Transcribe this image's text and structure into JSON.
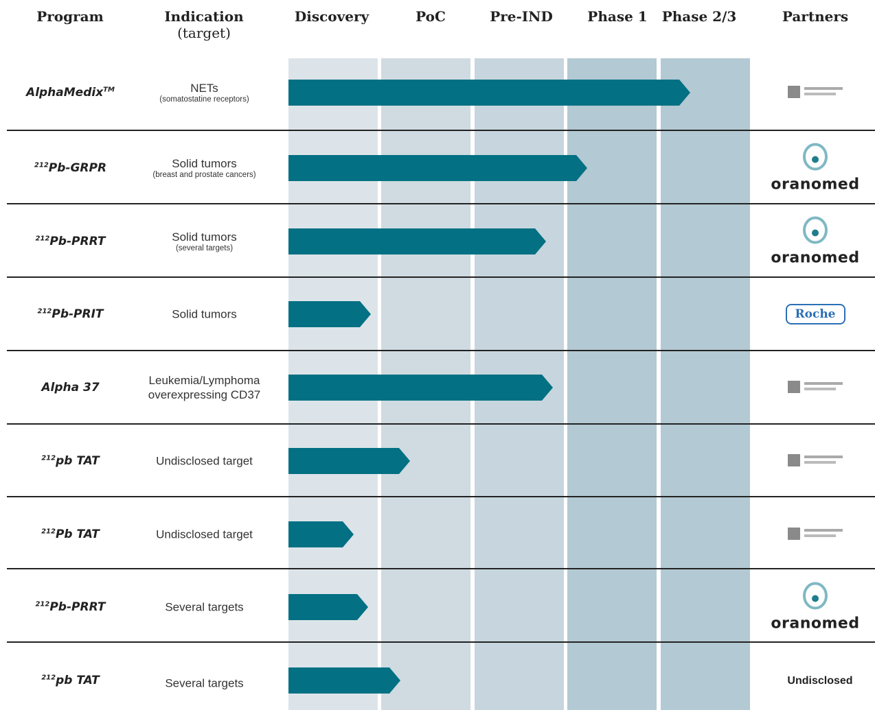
{
  "header": {
    "columns": [
      {
        "label": "Program"
      },
      {
        "label": "Indication",
        "sub": "(target)"
      },
      {
        "label": "Discovery"
      },
      {
        "label": "PoC"
      },
      {
        "label": "Pre-IND"
      },
      {
        "label": "Phase 1"
      },
      {
        "label": "Phase 2/3"
      },
      {
        "label": "Partners"
      }
    ]
  },
  "rows": [
    {
      "program": {
        "name": "AlphaMedix",
        "sup_after": "TM"
      },
      "indication": {
        "lines": [
          "NETs"
        ],
        "sub": "(somatostatine receptors)"
      }
    },
    {
      "program": {
        "sup_before": "212",
        "name": "Pb-GRPR"
      },
      "indication": {
        "lines": [
          "Solid tumors"
        ],
        "sub": "(breast and prostate cancers)"
      },
      "partner": "oranomed"
    },
    {
      "program": {
        "sup_before": "212",
        "name": "Pb-PRRT"
      },
      "indication": {
        "lines": [
          "Solid tumors"
        ],
        "sub": "(several targets)"
      },
      "partner": "oranomed"
    },
    {
      "program": {
        "sup_before": "212",
        "name": "Pb-PRIT"
      },
      "indication": {
        "lines": [
          "Solid tumors"
        ]
      },
      "partner": "Roche"
    },
    {
      "program": {
        "name": "Alpha 37"
      },
      "indication": {
        "lines": [
          "Leukemia/Lymphoma",
          "overexpressing CD37"
        ]
      }
    },
    {
      "program": {
        "sup_before": "212",
        "name": "pb TAT"
      },
      "indication": {
        "lines": [
          "Undisclosed target"
        ]
      }
    },
    {
      "program": {
        "sup_before": "212",
        "name": "Pb TAT"
      },
      "indication": {
        "lines": [
          "Undisclosed target"
        ]
      }
    },
    {
      "program": {
        "sup_before": "212",
        "name": "Pb-PRRT"
      },
      "indication": {
        "lines": [
          "Several targets"
        ]
      },
      "partner": "oranomed"
    },
    {
      "program": {
        "sup_before": "212",
        "name": "pb TAT"
      },
      "indication": {
        "lines": [
          "Several targets"
        ]
      },
      "partner": "Undisclosed"
    }
  ]
}
